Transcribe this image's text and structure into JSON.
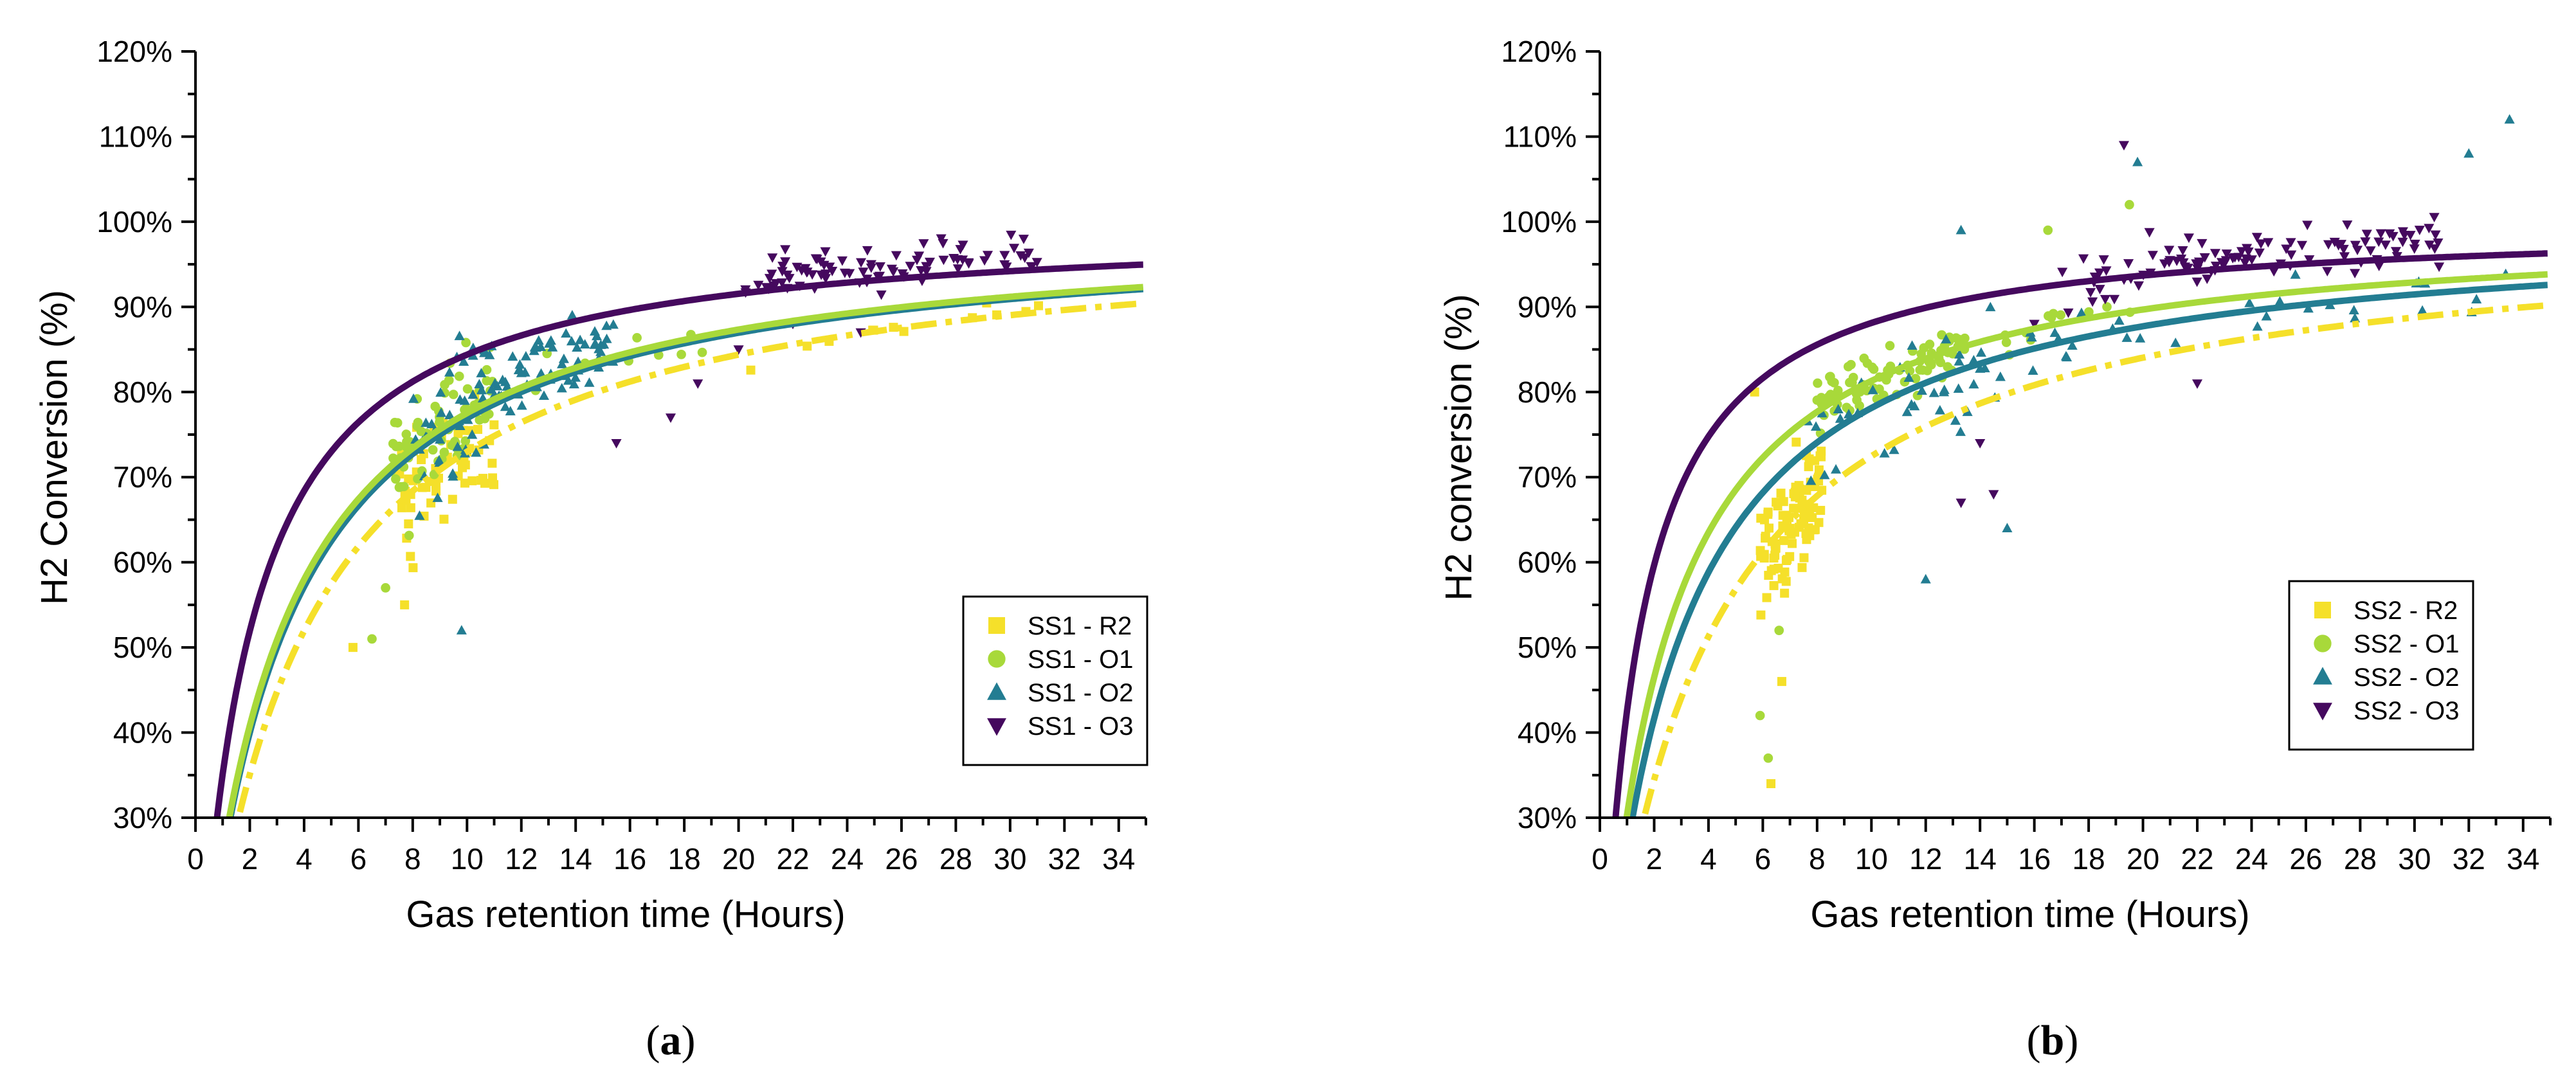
{
  "colors": {
    "R2": "#f5e02a",
    "O1": "#a8d93a",
    "O2": "#237d92",
    "O3": "#45095e"
  },
  "chart_data": [
    {
      "type": "scatter",
      "panel_label": "a",
      "xlabel": "Gas retention time (Hours)",
      "ylabel": "H2 Conversion (%)",
      "xlim": [
        0,
        35
      ],
      "ylim": [
        30,
        120
      ],
      "x_ticks": [
        0,
        2,
        4,
        6,
        8,
        10,
        12,
        14,
        16,
        18,
        20,
        22,
        24,
        26,
        28,
        30,
        32,
        34
      ],
      "y_ticks": [
        "30%",
        "40%",
        "50%",
        "60%",
        "70%",
        "80%",
        "90%",
        "100%",
        "110%",
        "120%"
      ],
      "legend_position": "lower-right",
      "series": [
        {
          "name": "SS1 - R2",
          "key": "R2",
          "marker": "square",
          "fit": {
            "k": 3.7,
            "style": "dashdot"
          },
          "clusters": [
            {
              "xmin": 7.5,
              "xmax": 11,
              "n": 60,
              "spread": 6
            },
            {
              "xmin": 15,
              "xmax": 32,
              "n": 12,
              "spread": 2
            }
          ],
          "points": [
            {
              "x": 5.8,
              "y": 50
            },
            {
              "x": 7.7,
              "y": 55
            }
          ]
        },
        {
          "name": "SS1 - O1",
          "key": "O1",
          "marker": "circle",
          "fit": {
            "k": 2.9,
            "style": "solid"
          },
          "clusters": [
            {
              "xmin": 7.2,
              "xmax": 11,
              "n": 70,
              "spread": 5
            },
            {
              "xmin": 12,
              "xmax": 19,
              "n": 10,
              "spread": 2
            }
          ],
          "points": [
            {
              "x": 6.5,
              "y": 51
            },
            {
              "x": 7,
              "y": 57
            }
          ]
        },
        {
          "name": "SS1 - O2",
          "key": "O2",
          "marker": "triangle-up",
          "fit": {
            "k": 3.0,
            "style": "solid"
          },
          "clusters": [
            {
              "xmin": 8,
              "xmax": 11,
              "n": 45,
              "spread": 8
            },
            {
              "xmin": 10.5,
              "xmax": 15.5,
              "n": 70,
              "spread": 4
            }
          ],
          "points": [
            {
              "x": 9.8,
              "y": 52
            }
          ]
        },
        {
          "name": "SS1 - O3",
          "key": "O3",
          "marker": "triangle-down",
          "fit": {
            "k": 1.85,
            "style": "solid"
          },
          "clusters": [
            {
              "xmin": 20,
              "xmax": 31,
              "n": 90,
              "spread": 2.2
            }
          ],
          "points": [
            {
              "x": 15.5,
              "y": 74
            },
            {
              "x": 17.5,
              "y": 77
            },
            {
              "x": 18.5,
              "y": 81
            },
            {
              "x": 20,
              "y": 85
            },
            {
              "x": 22,
              "y": 88
            },
            {
              "x": 24.5,
              "y": 87
            },
            {
              "x": 30.5,
              "y": 98
            }
          ]
        }
      ]
    },
    {
      "type": "scatter",
      "panel_label": "b",
      "xlabel": "Gas retention time (Hours)",
      "ylabel": "H2 conversion (%)",
      "xlim": [
        0,
        35
      ],
      "ylim": [
        30,
        120
      ],
      "x_ticks": [
        0,
        2,
        4,
        6,
        8,
        10,
        12,
        14,
        16,
        18,
        20,
        22,
        24,
        26,
        28,
        30,
        32,
        34
      ],
      "y_ticks": [
        "30%",
        "40%",
        "50%",
        "60%",
        "70%",
        "80%",
        "90%",
        "100%",
        "110%",
        "120%"
      ],
      "legend_position": "lower-right",
      "series": [
        {
          "name": "SS2 - R2",
          "key": "R2",
          "marker": "square",
          "fit": {
            "k": 3.8,
            "style": "dashdot"
          },
          "clusters": [
            {
              "xmin": 5.8,
              "xmax": 8.2,
              "n": 95,
              "spread": 6
            }
          ],
          "points": [
            {
              "x": 5.7,
              "y": 80
            },
            {
              "x": 6.3,
              "y": 34
            },
            {
              "x": 6.7,
              "y": 46
            }
          ]
        },
        {
          "name": "SS2 - O1",
          "key": "O1",
          "marker": "circle",
          "fit": {
            "k": 2.3,
            "style": "solid"
          },
          "clusters": [
            {
              "xmin": 8,
              "xmax": 13.5,
              "n": 85,
              "spread": 2.5
            },
            {
              "xmin": 13.5,
              "xmax": 20,
              "n": 12,
              "spread": 2
            }
          ],
          "points": [
            {
              "x": 5.9,
              "y": 42
            },
            {
              "x": 6.2,
              "y": 37
            },
            {
              "x": 6.6,
              "y": 52
            },
            {
              "x": 16.5,
              "y": 99
            },
            {
              "x": 19.5,
              "y": 102
            }
          ]
        },
        {
          "name": "SS2 - O2",
          "key": "O2",
          "marker": "triangle-up",
          "fit": {
            "k": 2.8,
            "style": "solid"
          },
          "clusters": [
            {
              "xmin": 7,
              "xmax": 15,
              "n": 40,
              "spread": 5
            },
            {
              "xmin": 15,
              "xmax": 34,
              "n": 30,
              "spread": 3
            }
          ],
          "points": [
            {
              "x": 12,
              "y": 58
            },
            {
              "x": 15,
              "y": 64
            },
            {
              "x": 13.3,
              "y": 99
            },
            {
              "x": 19.8,
              "y": 107
            },
            {
              "x": 32,
              "y": 108
            },
            {
              "x": 33.5,
              "y": 112
            }
          ]
        },
        {
          "name": "SS2 - O3",
          "key": "O3",
          "marker": "triangle-down",
          "fit": {
            "k": 1.35,
            "style": "solid"
          },
          "clusters": [
            {
              "xmin": 17,
              "xmax": 31,
              "n": 110,
              "spread": 2.2
            }
          ],
          "points": [
            {
              "x": 13.3,
              "y": 67
            },
            {
              "x": 14,
              "y": 74
            },
            {
              "x": 14.5,
              "y": 68
            },
            {
              "x": 16,
              "y": 88
            },
            {
              "x": 19.3,
              "y": 109
            },
            {
              "x": 22,
              "y": 81
            }
          ]
        }
      ]
    }
  ]
}
